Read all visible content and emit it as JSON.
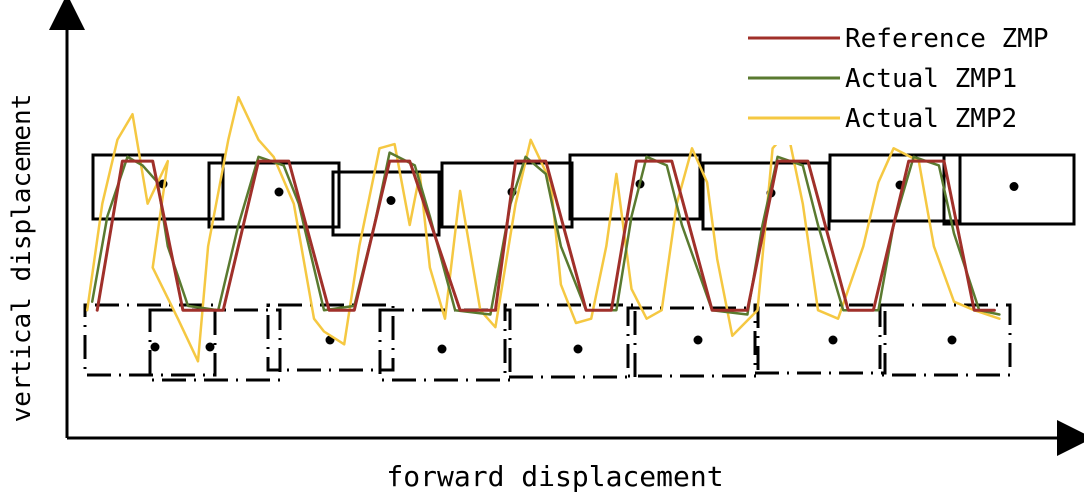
{
  "chart_data": {
    "type": "line",
    "title": "",
    "xlabel": "forward displacement",
    "ylabel": "vertical displacement",
    "grid": false,
    "legend_position": "top-right",
    "series": [
      {
        "name": "Reference ZMP",
        "color": "#a0302a",
        "points": [
          [
            0.03,
            0.3
          ],
          [
            0.055,
            0.65
          ],
          [
            0.085,
            0.65
          ],
          [
            0.115,
            0.3
          ],
          [
            0.155,
            0.3
          ],
          [
            0.19,
            0.65
          ],
          [
            0.22,
            0.65
          ],
          [
            0.26,
            0.3
          ],
          [
            0.285,
            0.3
          ],
          [
            0.32,
            0.65
          ],
          [
            0.34,
            0.65
          ],
          [
            0.39,
            0.3
          ],
          [
            0.425,
            0.3
          ],
          [
            0.445,
            0.65
          ],
          [
            0.475,
            0.65
          ],
          [
            0.515,
            0.3
          ],
          [
            0.54,
            0.3
          ],
          [
            0.565,
            0.65
          ],
          [
            0.6,
            0.65
          ],
          [
            0.64,
            0.3
          ],
          [
            0.675,
            0.3
          ],
          [
            0.705,
            0.65
          ],
          [
            0.735,
            0.65
          ],
          [
            0.775,
            0.3
          ],
          [
            0.8,
            0.3
          ],
          [
            0.835,
            0.65
          ],
          [
            0.87,
            0.65
          ],
          [
            0.9,
            0.3
          ],
          [
            0.92,
            0.3
          ]
        ]
      },
      {
        "name": "Actual ZMP1",
        "color": "#5a7a30",
        "points": [
          [
            0.025,
            0.32
          ],
          [
            0.04,
            0.52
          ],
          [
            0.06,
            0.66
          ],
          [
            0.075,
            0.64
          ],
          [
            0.09,
            0.6
          ],
          [
            0.1,
            0.45
          ],
          [
            0.12,
            0.31
          ],
          [
            0.15,
            0.3
          ],
          [
            0.17,
            0.5
          ],
          [
            0.19,
            0.66
          ],
          [
            0.215,
            0.64
          ],
          [
            0.23,
            0.55
          ],
          [
            0.255,
            0.3
          ],
          [
            0.285,
            0.31
          ],
          [
            0.305,
            0.5
          ],
          [
            0.32,
            0.67
          ],
          [
            0.345,
            0.64
          ],
          [
            0.36,
            0.52
          ],
          [
            0.385,
            0.3
          ],
          [
            0.42,
            0.29
          ],
          [
            0.44,
            0.55
          ],
          [
            0.455,
            0.66
          ],
          [
            0.475,
            0.62
          ],
          [
            0.49,
            0.45
          ],
          [
            0.515,
            0.3
          ],
          [
            0.545,
            0.3
          ],
          [
            0.56,
            0.52
          ],
          [
            0.575,
            0.66
          ],
          [
            0.595,
            0.64
          ],
          [
            0.61,
            0.5
          ],
          [
            0.64,
            0.3
          ],
          [
            0.675,
            0.29
          ],
          [
            0.69,
            0.5
          ],
          [
            0.705,
            0.66
          ],
          [
            0.73,
            0.64
          ],
          [
            0.745,
            0.5
          ],
          [
            0.77,
            0.3
          ],
          [
            0.805,
            0.3
          ],
          [
            0.82,
            0.5
          ],
          [
            0.84,
            0.66
          ],
          [
            0.865,
            0.64
          ],
          [
            0.88,
            0.48
          ],
          [
            0.905,
            0.3
          ],
          [
            0.925,
            0.29
          ]
        ]
      },
      {
        "name": "Actual ZMP2",
        "color": "#f5c842",
        "points": [
          [
            0.02,
            0.3
          ],
          [
            0.035,
            0.55
          ],
          [
            0.05,
            0.7
          ],
          [
            0.065,
            0.76
          ],
          [
            0.08,
            0.55
          ],
          [
            0.1,
            0.65
          ],
          [
            0.085,
            0.4
          ],
          [
            0.11,
            0.28
          ],
          [
            0.13,
            0.18
          ],
          [
            0.14,
            0.45
          ],
          [
            0.16,
            0.7
          ],
          [
            0.17,
            0.8
          ],
          [
            0.19,
            0.7
          ],
          [
            0.205,
            0.66
          ],
          [
            0.225,
            0.55
          ],
          [
            0.245,
            0.28
          ],
          [
            0.255,
            0.25
          ],
          [
            0.275,
            0.22
          ],
          [
            0.29,
            0.45
          ],
          [
            0.31,
            0.68
          ],
          [
            0.325,
            0.69
          ],
          [
            0.34,
            0.5
          ],
          [
            0.35,
            0.62
          ],
          [
            0.36,
            0.4
          ],
          [
            0.375,
            0.28
          ],
          [
            0.39,
            0.58
          ],
          [
            0.41,
            0.3
          ],
          [
            0.425,
            0.26
          ],
          [
            0.445,
            0.55
          ],
          [
            0.46,
            0.7
          ],
          [
            0.48,
            0.6
          ],
          [
            0.49,
            0.36
          ],
          [
            0.505,
            0.27
          ],
          [
            0.52,
            0.28
          ],
          [
            0.535,
            0.45
          ],
          [
            0.545,
            0.62
          ],
          [
            0.56,
            0.35
          ],
          [
            0.575,
            0.28
          ],
          [
            0.59,
            0.3
          ],
          [
            0.605,
            0.55
          ],
          [
            0.62,
            0.68
          ],
          [
            0.635,
            0.6
          ],
          [
            0.645,
            0.42
          ],
          [
            0.66,
            0.24
          ],
          [
            0.685,
            0.3
          ],
          [
            0.7,
            0.68
          ],
          [
            0.715,
            0.72
          ],
          [
            0.73,
            0.55
          ],
          [
            0.745,
            0.3
          ],
          [
            0.765,
            0.28
          ],
          [
            0.79,
            0.45
          ],
          [
            0.805,
            0.6
          ],
          [
            0.82,
            0.68
          ],
          [
            0.845,
            0.65
          ],
          [
            0.86,
            0.45
          ],
          [
            0.88,
            0.32
          ],
          [
            0.9,
            0.3
          ],
          [
            0.925,
            0.28
          ]
        ]
      }
    ],
    "footprints_upper": [
      {
        "dot": true
      },
      {
        "dot": true
      },
      {
        "dot": true
      },
      {
        "dot": true
      },
      {
        "dot": true
      },
      {
        "dot": true
      },
      {
        "dot": true
      },
      {
        "dot": true
      }
    ],
    "footprints_lower_count": 8
  }
}
